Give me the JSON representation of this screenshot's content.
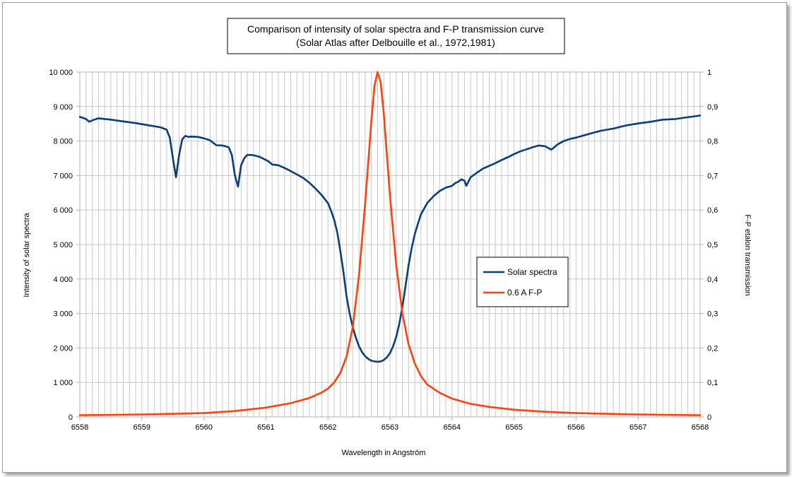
{
  "chart_data": {
    "type": "line",
    "title": "Comparison of intensity of solar spectra and F-P transmission curve",
    "subtitle": "(Solar Atlas after Delbouille et al., 1972,1981)",
    "xlabel": "Wavelength in Angström",
    "ylabel": "Intensity of solar spectra",
    "y2label": "F-P etalon transmission",
    "xlim": [
      6558,
      6568
    ],
    "ylim": [
      0,
      10000
    ],
    "y2lim": [
      0,
      1
    ],
    "x_ticks": [
      "6558",
      "6559",
      "6560",
      "6561",
      "6562",
      "6563",
      "6564",
      "6565",
      "6566",
      "6567",
      "6568"
    ],
    "y_ticks": [
      "0",
      "1 000",
      "2 000",
      "3 000",
      "4 000",
      "5 000",
      "6 000",
      "7 000",
      "8 000",
      "9 000",
      "10 000"
    ],
    "y2_ticks": [
      "0",
      "0,1",
      "0,2",
      "0,3",
      "0,4",
      "0,5",
      "0,6",
      "0,7",
      "0,8",
      "0,9",
      "1"
    ],
    "grid": true,
    "legend_position": "right",
    "series": [
      {
        "name": "Solar spectra",
        "axis": "left",
        "color": "#0b3d76",
        "points": [
          [
            6558.0,
            8700
          ],
          [
            6558.1,
            8640
          ],
          [
            6558.15,
            8560
          ],
          [
            6558.2,
            8600
          ],
          [
            6558.3,
            8660
          ],
          [
            6558.5,
            8620
          ],
          [
            6558.7,
            8570
          ],
          [
            6558.9,
            8520
          ],
          [
            6559.1,
            8460
          ],
          [
            6559.3,
            8400
          ],
          [
            6559.4,
            8330
          ],
          [
            6559.45,
            8100
          ],
          [
            6559.5,
            7500
          ],
          [
            6559.55,
            6950
          ],
          [
            6559.6,
            7600
          ],
          [
            6559.65,
            8050
          ],
          [
            6559.7,
            8150
          ],
          [
            6559.75,
            8120
          ],
          [
            6559.8,
            8130
          ],
          [
            6559.9,
            8120
          ],
          [
            6560.0,
            8080
          ],
          [
            6560.1,
            8020
          ],
          [
            6560.2,
            7880
          ],
          [
            6560.3,
            7870
          ],
          [
            6560.4,
            7820
          ],
          [
            6560.45,
            7600
          ],
          [
            6560.5,
            7000
          ],
          [
            6560.55,
            6680
          ],
          [
            6560.6,
            7300
          ],
          [
            6560.65,
            7500
          ],
          [
            6560.7,
            7600
          ],
          [
            6560.8,
            7590
          ],
          [
            6560.9,
            7540
          ],
          [
            6561.0,
            7450
          ],
          [
            6561.05,
            7400
          ],
          [
            6561.1,
            7320
          ],
          [
            6561.2,
            7300
          ],
          [
            6561.3,
            7220
          ],
          [
            6561.4,
            7130
          ],
          [
            6561.5,
            7030
          ],
          [
            6561.6,
            6930
          ],
          [
            6561.7,
            6790
          ],
          [
            6561.8,
            6620
          ],
          [
            6561.9,
            6430
          ],
          [
            6562.0,
            6200
          ],
          [
            6562.05,
            5980
          ],
          [
            6562.1,
            5720
          ],
          [
            6562.15,
            5350
          ],
          [
            6562.2,
            4800
          ],
          [
            6562.25,
            4200
          ],
          [
            6562.3,
            3500
          ],
          [
            6562.35,
            3000
          ],
          [
            6562.4,
            2600
          ],
          [
            6562.45,
            2300
          ],
          [
            6562.5,
            2050
          ],
          [
            6562.55,
            1880
          ],
          [
            6562.6,
            1760
          ],
          [
            6562.65,
            1680
          ],
          [
            6562.7,
            1630
          ],
          [
            6562.75,
            1610
          ],
          [
            6562.8,
            1600
          ],
          [
            6562.85,
            1610
          ],
          [
            6562.9,
            1650
          ],
          [
            6562.95,
            1730
          ],
          [
            6563.0,
            1850
          ],
          [
            6563.05,
            2050
          ],
          [
            6563.1,
            2320
          ],
          [
            6563.15,
            2700
          ],
          [
            6563.2,
            3200
          ],
          [
            6563.25,
            3800
          ],
          [
            6563.3,
            4400
          ],
          [
            6563.35,
            4900
          ],
          [
            6563.4,
            5300
          ],
          [
            6563.45,
            5600
          ],
          [
            6563.5,
            5880
          ],
          [
            6563.6,
            6200
          ],
          [
            6563.7,
            6400
          ],
          [
            6563.8,
            6550
          ],
          [
            6563.9,
            6650
          ],
          [
            6564.0,
            6700
          ],
          [
            6564.05,
            6780
          ],
          [
            6564.1,
            6820
          ],
          [
            6564.15,
            6890
          ],
          [
            6564.2,
            6850
          ],
          [
            6564.23,
            6700
          ],
          [
            6564.3,
            6950
          ],
          [
            6564.4,
            7080
          ],
          [
            6564.5,
            7200
          ],
          [
            6564.6,
            7280
          ],
          [
            6564.7,
            7360
          ],
          [
            6564.8,
            7450
          ],
          [
            6564.9,
            7530
          ],
          [
            6565.0,
            7620
          ],
          [
            6565.1,
            7700
          ],
          [
            6565.2,
            7760
          ],
          [
            6565.3,
            7820
          ],
          [
            6565.4,
            7870
          ],
          [
            6565.5,
            7850
          ],
          [
            6565.55,
            7800
          ],
          [
            6565.6,
            7750
          ],
          [
            6565.7,
            7900
          ],
          [
            6565.8,
            8000
          ],
          [
            6565.9,
            8060
          ],
          [
            6566.0,
            8100
          ],
          [
            6566.2,
            8200
          ],
          [
            6566.4,
            8300
          ],
          [
            6566.6,
            8360
          ],
          [
            6566.8,
            8450
          ],
          [
            6567.0,
            8510
          ],
          [
            6567.2,
            8560
          ],
          [
            6567.4,
            8620
          ],
          [
            6567.6,
            8640
          ],
          [
            6567.8,
            8690
          ],
          [
            6568.0,
            8740
          ]
        ]
      },
      {
        "name": "0.6 A F-P",
        "axis": "right",
        "color": "#ff420e",
        "points": [
          [
            6558.0,
            0.005
          ],
          [
            6558.5,
            0.006
          ],
          [
            6559.0,
            0.007
          ],
          [
            6559.5,
            0.009
          ],
          [
            6560.0,
            0.011
          ],
          [
            6560.5,
            0.017
          ],
          [
            6561.0,
            0.027
          ],
          [
            6561.4,
            0.04
          ],
          [
            6561.7,
            0.055
          ],
          [
            6561.9,
            0.071
          ],
          [
            6562.0,
            0.082
          ],
          [
            6562.1,
            0.1
          ],
          [
            6562.2,
            0.128
          ],
          [
            6562.3,
            0.175
          ],
          [
            6562.4,
            0.26
          ],
          [
            6562.5,
            0.41
          ],
          [
            6562.6,
            0.62
          ],
          [
            6562.7,
            0.86
          ],
          [
            6562.75,
            0.96
          ],
          [
            6562.8,
            1.0
          ],
          [
            6562.85,
            0.97
          ],
          [
            6562.9,
            0.88
          ],
          [
            6563.0,
            0.64
          ],
          [
            6563.1,
            0.44
          ],
          [
            6563.2,
            0.3
          ],
          [
            6563.3,
            0.21
          ],
          [
            6563.4,
            0.155
          ],
          [
            6563.5,
            0.118
          ],
          [
            6563.6,
            0.094
          ],
          [
            6563.8,
            0.07
          ],
          [
            6564.0,
            0.053
          ],
          [
            6564.3,
            0.038
          ],
          [
            6564.6,
            0.029
          ],
          [
            6565.0,
            0.021
          ],
          [
            6565.5,
            0.015
          ],
          [
            6566.0,
            0.011
          ],
          [
            6566.5,
            0.009
          ],
          [
            6567.0,
            0.007
          ],
          [
            6567.5,
            0.006
          ],
          [
            6568.0,
            0.005
          ]
        ]
      }
    ]
  }
}
